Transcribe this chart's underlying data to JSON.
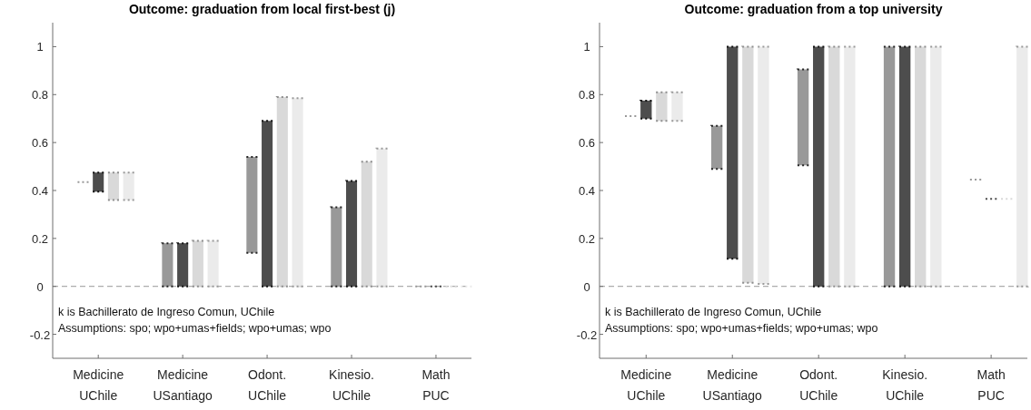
{
  "chart_data": [
    {
      "type": "bar",
      "title": "Outcome: graduation from local first-best (j)",
      "categories": [
        "Medicine\nUChile",
        "Medicine\nUSantiago",
        "Odont.\nUChile",
        "Kinesio.\nUChile",
        "Math\nPUC"
      ],
      "ylim": [
        -0.3,
        1.1
      ],
      "yticks": [
        -0.2,
        0,
        0.2,
        0.4,
        0.6,
        0.8,
        1
      ],
      "series": [
        {
          "color": "#999999",
          "base": [
            0.435,
            0,
            0.14,
            0,
            0
          ],
          "values": [
            0,
            0.18,
            0.4,
            0.33,
            0
          ]
        },
        {
          "color": "#4d4d4d",
          "base": [
            0.395,
            0,
            0,
            0,
            0
          ],
          "values": [
            0.08,
            0.18,
            0.69,
            0.44,
            0
          ]
        },
        {
          "color": "#d9d9d9",
          "base": [
            0.36,
            0,
            0,
            0,
            0
          ],
          "values": [
            0.115,
            0.19,
            0.79,
            0.52,
            0
          ]
        },
        {
          "color": "#ebebeb",
          "base": [
            0.36,
            0,
            0,
            0,
            0
          ],
          "values": [
            0.115,
            0.19,
            0.785,
            0.575,
            0
          ]
        }
      ],
      "ref_lines": [
        {
          "axis": "y",
          "value": 0,
          "color": "#999999",
          "line_style": "dashed"
        }
      ],
      "annotations": [
        "k is Bachillerato de Ingreso Comun, UChile",
        "Assumptions: spo; wpo+umas+fields; wpo+umas; wpo"
      ]
    },
    {
      "type": "bar",
      "title": "Outcome: graduation from a top university",
      "categories": [
        "Medicine\nUChile",
        "Medicine\nUSantiago",
        "Odont.\nUChile",
        "Kinesio.\nUChile",
        "Math\nPUC"
      ],
      "ylim": [
        -0.3,
        1.1
      ],
      "yticks": [
        -0.2,
        0,
        0.2,
        0.4,
        0.6,
        0.8,
        1
      ],
      "series": [
        {
          "color": "#999999",
          "base": [
            0.71,
            0.49,
            0.505,
            0,
            0.445
          ],
          "values": [
            0,
            0.18,
            0.4,
            1,
            0
          ]
        },
        {
          "color": "#4d4d4d",
          "base": [
            0.7,
            0.115,
            0,
            0,
            0.365
          ],
          "values": [
            0.075,
            0.885,
            1,
            1,
            0
          ]
        },
        {
          "color": "#d9d9d9",
          "base": [
            0.69,
            0.015,
            0,
            0,
            0.365
          ],
          "values": [
            0.12,
            0.985,
            1,
            1,
            0
          ]
        },
        {
          "color": "#ebebeb",
          "base": [
            0.69,
            0.01,
            0,
            0,
            0
          ],
          "values": [
            0.12,
            0.99,
            1,
            1,
            1
          ]
        }
      ],
      "ref_lines": [
        {
          "axis": "y",
          "value": 0,
          "color": "#999999",
          "line_style": "dashed"
        }
      ],
      "annotations": [
        "k is Bachillerato de Ingreso Comun, UChile",
        "Assumptions: spo; wpo+umas+fields; wpo+umas; wpo"
      ]
    }
  ]
}
